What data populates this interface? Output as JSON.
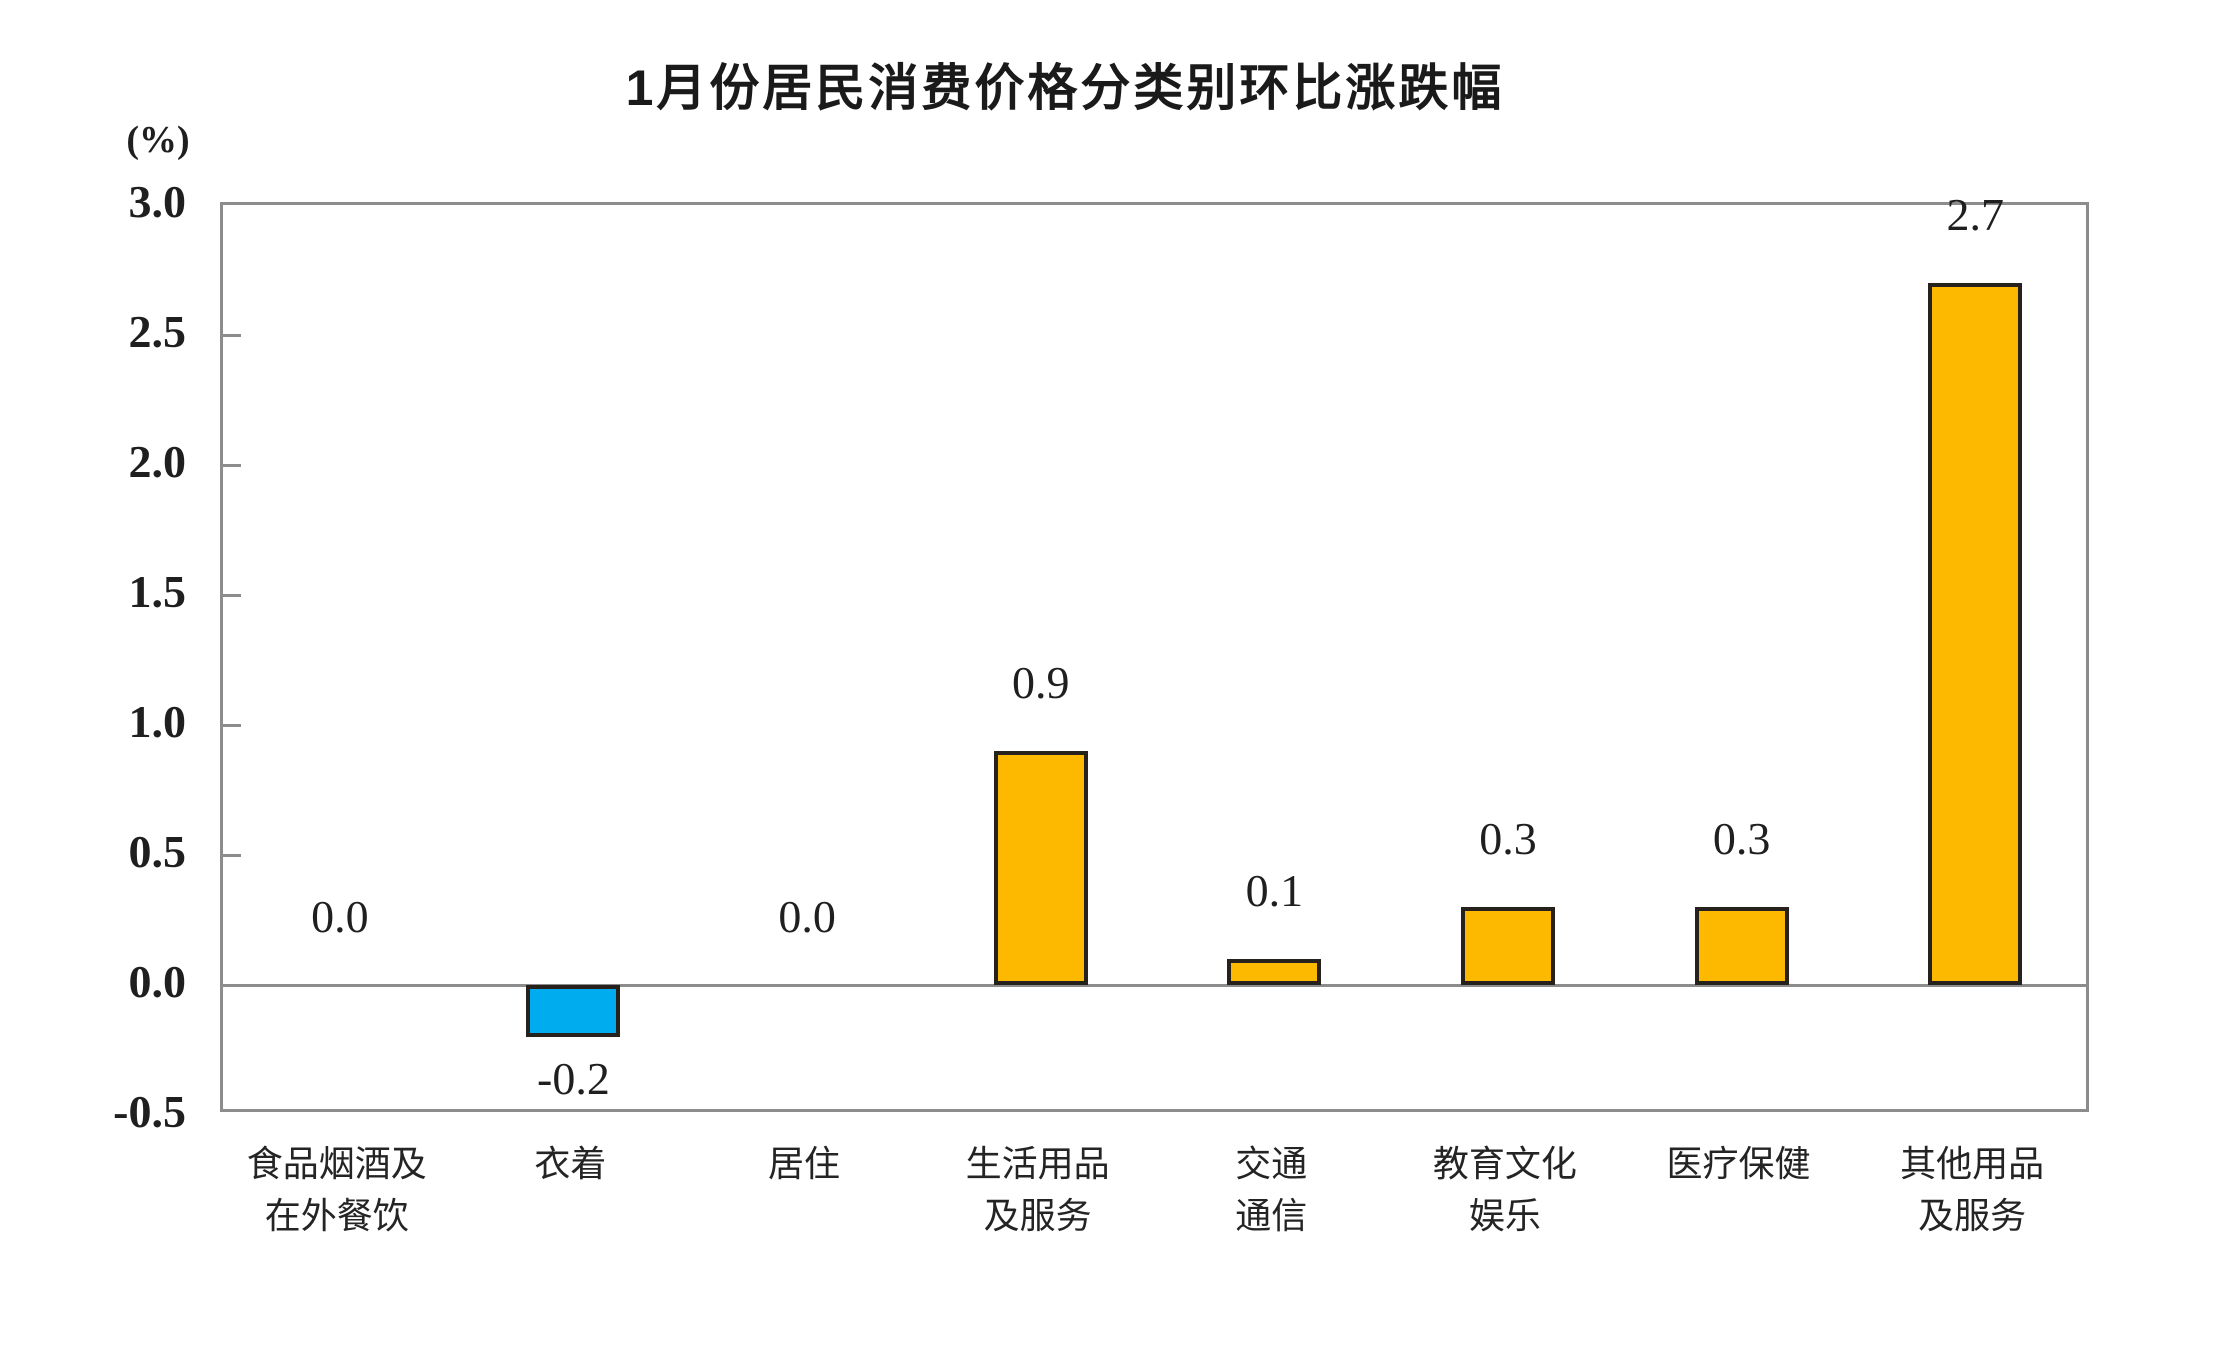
{
  "chart_data": {
    "type": "bar",
    "title": "1月份居民消费价格分类别环比涨跌幅",
    "unit_label": "(%)",
    "categories": [
      "食品烟酒及\n在外餐饮",
      "衣着",
      "居住",
      "生活用品\n及服务",
      "交通\n通信",
      "教育文化\n娱乐",
      "医疗保健",
      "其他用品\n及服务"
    ],
    "values": [
      0.0,
      -0.2,
      0.0,
      0.9,
      0.1,
      0.3,
      0.3,
      2.7
    ],
    "value_labels": [
      "0.0",
      "-0.2",
      "0.0",
      "0.9",
      "0.1",
      "0.3",
      "0.3",
      "2.7"
    ],
    "ylim": [
      -0.5,
      3.0
    ],
    "ytick_step": 0.5,
    "ytick_labels": [
      "3.0",
      "2.5",
      "2.0",
      "1.5",
      "1.0",
      "0.5",
      "0.0",
      "-0.5"
    ],
    "grid": false,
    "legend": "none",
    "colors": {
      "bar_positive": "#FCB900",
      "bar_negative": "#00ACEE",
      "bar_border": "#26211C",
      "axis_frame": "#8C8C8C",
      "text": "#1F1F1F"
    }
  }
}
